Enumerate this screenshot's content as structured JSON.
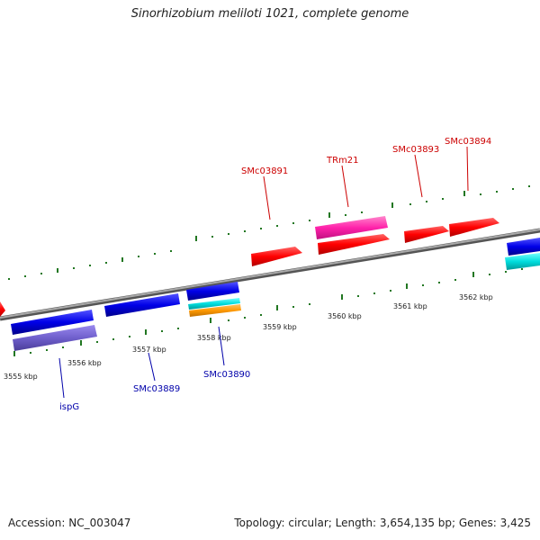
{
  "title": "Sinorhizobium meliloti 1021, complete genome",
  "footer": {
    "accession": "Accession: NC_003047",
    "summary": "Topology: circular; Length: 3,654,135 bp; Genes: 3,425"
  },
  "colors": {
    "forward_cds": "#f00000",
    "reverse_cds": "#0000e0",
    "trna": "#ff33aa",
    "gene": "#7766cc",
    "misc_cyan": "#00dddd",
    "misc_orange": "#ff9900",
    "ticks": "#227722",
    "backbone": "#888888",
    "label_forward": "#cc0000",
    "label_reverse": "#0000aa"
  },
  "scale_labels": [
    "3555 kbp",
    "3556 kbp",
    "3557 kbp",
    "3558 kbp",
    "3559 kbp",
    "3560 kbp",
    "3561 kbp",
    "3562 kbp"
  ],
  "gene_labels": {
    "top": [
      "SMc03891",
      "TRm21",
      "SMc03893",
      "SMc03894"
    ],
    "bottom": [
      "ispG",
      "SMc03889",
      "SMc03890"
    ]
  }
}
